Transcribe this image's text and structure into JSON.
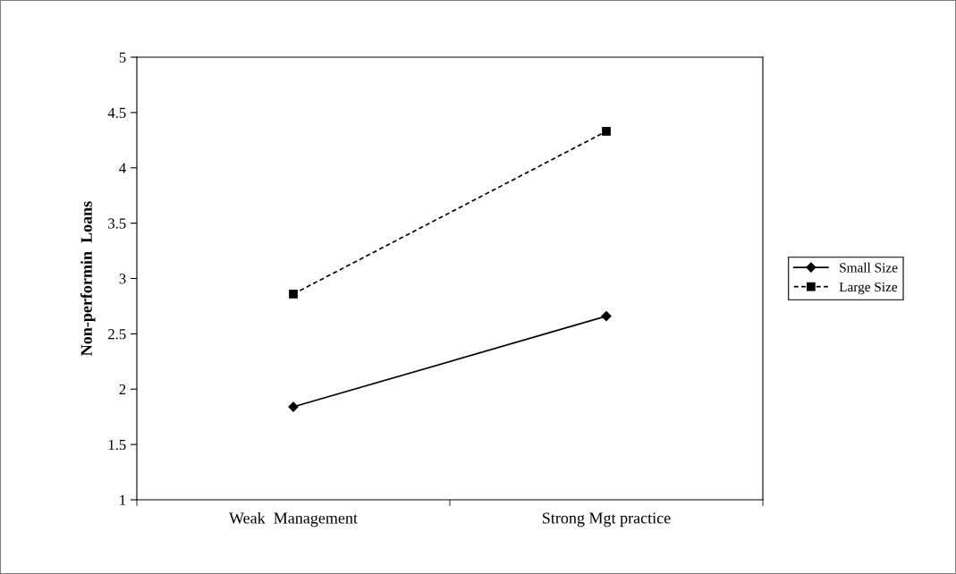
{
  "chart_data": {
    "type": "line",
    "ylabel": "Non-performin  Loans",
    "categories": [
      "Weak  Management",
      "Strong Mgt practice"
    ],
    "series": [
      {
        "name": "Small Size",
        "color": "#000000",
        "values": [
          1.84,
          2.66
        ],
        "marker": "diamond",
        "line_style": "solid"
      },
      {
        "name": "Large Size",
        "color": "#000000",
        "values": [
          2.86,
          4.33
        ],
        "marker": "square",
        "line_style": "dashed"
      }
    ],
    "ylim": [
      1,
      5
    ],
    "yticks": [
      1,
      1.5,
      2,
      2.5,
      3,
      3.5,
      4,
      4.5,
      5
    ],
    "grid": false,
    "legend": "right"
  }
}
